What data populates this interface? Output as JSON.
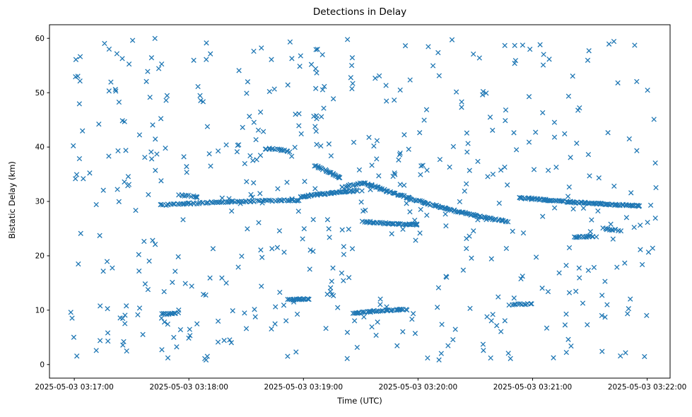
{
  "chart_data": {
    "type": "scatter",
    "marker": "x",
    "marker_color": "#1f77b4",
    "title": "Detections in Delay",
    "xlabel": "Time (UTC)",
    "ylabel": "Bistatic Delay (km)",
    "time_base": "2025-05-03 03:17:00",
    "x_tick_labels": [
      "2025-05-03 03:17:00",
      "2025-05-03 03:18:00",
      "2025-05-03 03:19:00",
      "2025-05-03 03:20:00",
      "2025-05-03 03:21:00",
      "2025-05-03 03:22:00"
    ],
    "x_tick_seconds": [
      0,
      60,
      120,
      180,
      240,
      300
    ],
    "y_ticks": [
      0,
      10,
      20,
      30,
      40,
      50,
      60
    ],
    "x_range_seconds": [
      -13,
      312
    ],
    "y_range": [
      -2.5,
      62.5
    ],
    "grid": false,
    "seed": 11,
    "background": {
      "comment": "uniform clutter detections filling the plot",
      "count": 520,
      "t_min": -2,
      "t_max": 305,
      "d_min": 0.8,
      "d_max": 60.0
    },
    "tracks": [
      {
        "t0": 45,
        "t1": 118,
        "d0": 29.3,
        "d1": 30.2,
        "count": 85,
        "bow": 0.2
      },
      {
        "t0": 118,
        "t1": 148,
        "d0": 30.8,
        "d1": 32.0,
        "count": 55,
        "bow": 0.1
      },
      {
        "t0": 140,
        "t1": 152,
        "d0": 32.7,
        "d1": 33.4,
        "count": 16,
        "bow": 0
      },
      {
        "t0": 152,
        "t1": 227,
        "d0": 33.4,
        "d1": 26.3,
        "count": 120,
        "bow": -0.7
      },
      {
        "t0": 233,
        "t1": 296,
        "d0": 30.7,
        "d1": 29.2,
        "count": 110,
        "bow": -0.15
      },
      {
        "t0": 152,
        "t1": 180,
        "d0": 26.3,
        "d1": 25.7,
        "count": 45,
        "bow": -0.1
      },
      {
        "t0": 146,
        "t1": 174,
        "d0": 9.4,
        "d1": 10.1,
        "count": 40,
        "bow": 0.15
      },
      {
        "t0": 46,
        "t1": 54,
        "d0": 9.3,
        "d1": 9.4,
        "count": 14,
        "bow": 0
      },
      {
        "t0": 100,
        "t1": 113,
        "d0": 39.7,
        "d1": 39.2,
        "count": 16,
        "bow": 0.1
      },
      {
        "t0": 126,
        "t1": 139,
        "d0": 36.6,
        "d1": 34.4,
        "count": 24,
        "bow": 0
      },
      {
        "t0": 112,
        "t1": 123,
        "d0": 11.9,
        "d1": 12.1,
        "count": 18,
        "bow": 0
      },
      {
        "t0": 228,
        "t1": 240,
        "d0": 11.0,
        "d1": 11.2,
        "count": 12,
        "bow": 0
      },
      {
        "t0": 262,
        "t1": 272,
        "d0": 23.4,
        "d1": 23.6,
        "count": 14,
        "bow": 0
      },
      {
        "t0": 277,
        "t1": 286,
        "d0": 25.0,
        "d1": 24.6,
        "count": 12,
        "bow": 0
      },
      {
        "t0": 55,
        "t1": 64,
        "d0": 31.2,
        "d1": 30.9,
        "count": 10,
        "bow": 0
      }
    ]
  }
}
